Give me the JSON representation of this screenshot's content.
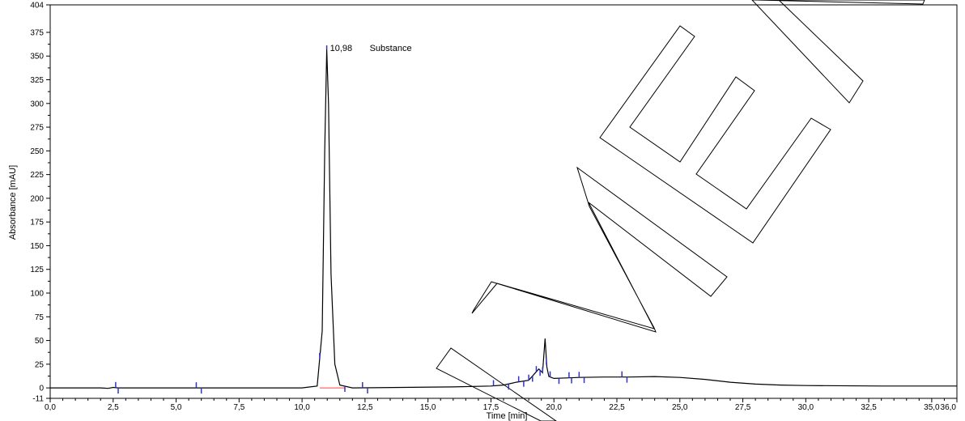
{
  "chart_data": {
    "type": "line",
    "xlabel": "Time [min]",
    "ylabel": "Absorbance [mAU]",
    "xlim": [
      0.0,
      36.0
    ],
    "ylim": [
      -11,
      404
    ],
    "x_ticks": [
      "0,0",
      "2,5",
      "5,0",
      "7,5",
      "10,0",
      "12,5",
      "15,0",
      "17,5",
      "20,0",
      "22,5",
      "25,0",
      "27,5",
      "30,0",
      "32,5",
      "35,0",
      "36,0"
    ],
    "y_ticks": [
      "-11",
      "0",
      "25",
      "50",
      "75",
      "100",
      "125",
      "150",
      "175",
      "200",
      "225",
      "250",
      "275",
      "300",
      "325",
      "350",
      "375",
      "404"
    ],
    "series": [
      {
        "x": [
          0.0,
          2.0,
          2.3,
          2.5,
          2.7,
          5.0,
          10.0,
          10.6,
          10.8,
          10.9,
          10.98,
          11.05,
          11.15,
          11.3,
          11.5,
          12.0,
          14.0,
          16.0,
          17.5,
          18.0,
          18.5,
          19.0,
          19.2,
          19.4,
          19.55,
          19.65,
          19.72,
          19.8,
          20.0,
          20.5,
          21.0,
          22.0,
          23.0,
          24.0,
          25.0,
          26.0,
          27.0,
          28.0,
          29.0,
          30.0,
          33.0,
          36.0
        ],
        "y": [
          0,
          0,
          -0.5,
          0.5,
          0,
          0,
          0,
          2,
          60,
          250,
          357,
          300,
          120,
          25,
          3,
          0,
          0.5,
          1,
          2,
          3,
          6,
          8,
          14,
          20,
          16,
          52,
          22,
          12,
          10,
          10.5,
          11,
          11.5,
          11.5,
          12,
          11,
          9,
          6,
          4,
          3,
          2.5,
          2,
          2
        ]
      }
    ],
    "peaks": [
      {
        "rt": "10,98",
        "name": "Substance",
        "x": 10.98,
        "y": 357
      }
    ],
    "integration_marks_x": [
      2.6,
      2.7,
      5.8,
      6.0,
      10.7,
      11.7,
      12.4,
      12.6,
      17.6,
      18.2,
      18.6,
      18.8,
      19.0,
      19.15,
      19.3,
      19.45,
      19.55,
      19.7,
      19.85,
      20.2,
      20.6,
      20.7,
      21.0,
      21.2,
      22.7,
      22.9
    ],
    "baseline_segment_x": [
      10.7,
      11.7
    ],
    "watermark_text": "MEI",
    "colors": {
      "trace": "#000000",
      "marks": "#3333cc",
      "baseline": "#ff4444",
      "axes": "#000000"
    },
    "grid": false
  }
}
